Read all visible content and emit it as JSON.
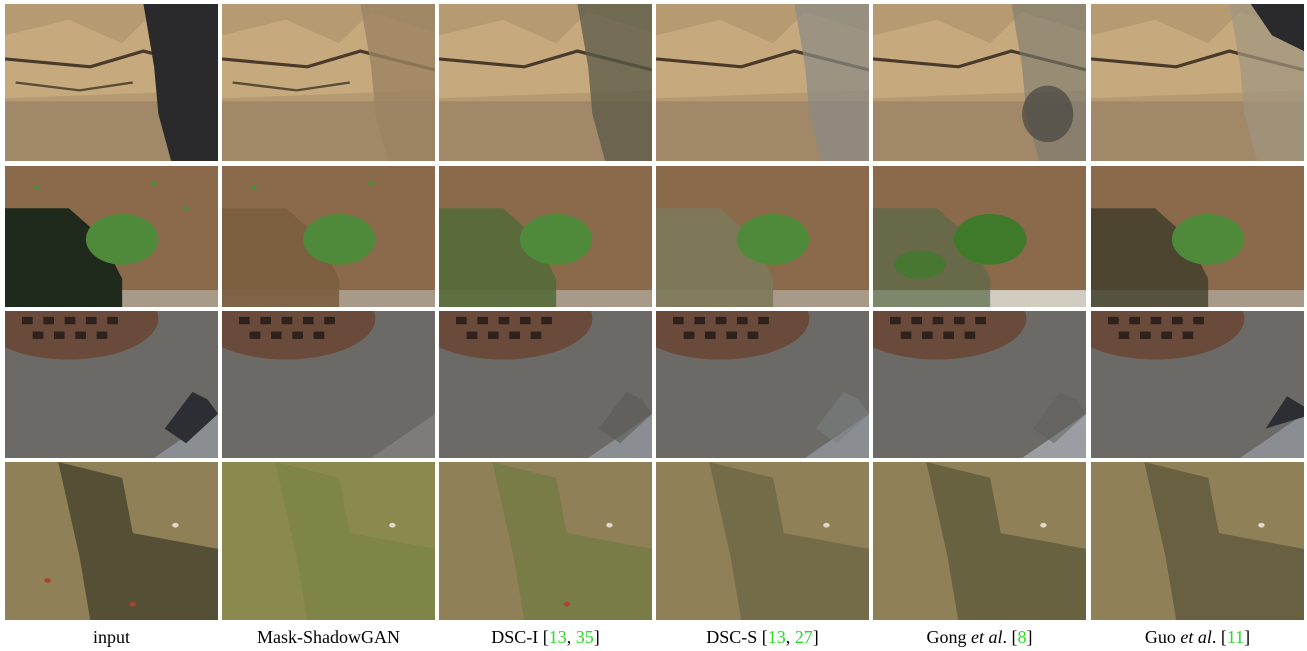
{
  "figure": {
    "columns": [
      {
        "label": "input"
      },
      {
        "label": "Mask-ShadowGAN"
      },
      {
        "label_prefix": "DSC-I [",
        "citations": [
          "13",
          "35"
        ],
        "label_suffix": "]"
      },
      {
        "label_prefix": "DSC-S [",
        "citations": [
          "13",
          "27"
        ],
        "label_suffix": "]"
      },
      {
        "label_prefix": "Gong ",
        "label_italic": "et al",
        "label_mid": ". [",
        "citations": [
          "8"
        ],
        "label_suffix": "]"
      },
      {
        "label_prefix": "Guo ",
        "label_italic": "et al",
        "label_mid": ". [",
        "citations": [
          "11"
        ],
        "label_suffix": "]"
      }
    ],
    "rows": [
      {
        "scene": "rock-wall",
        "base": "#b59a72",
        "accent": "#5a4a38",
        "shadow": "#2a2a2c"
      },
      {
        "scene": "grass-plant",
        "base": "#8a6a4a",
        "accent": "#4f8a3a",
        "shadow": "#1f2a1c"
      },
      {
        "scene": "manhole-pavement",
        "base": "#6c6a66",
        "accent": "#6a4a3a",
        "shadow": "#2c2e33"
      },
      {
        "scene": "lawn",
        "base": "#8f8058",
        "accent": "#6d7a3e",
        "shadow": "#3a3a26"
      }
    ],
    "colors": {
      "citation": "#22dd22",
      "background": "#ffffff"
    }
  }
}
